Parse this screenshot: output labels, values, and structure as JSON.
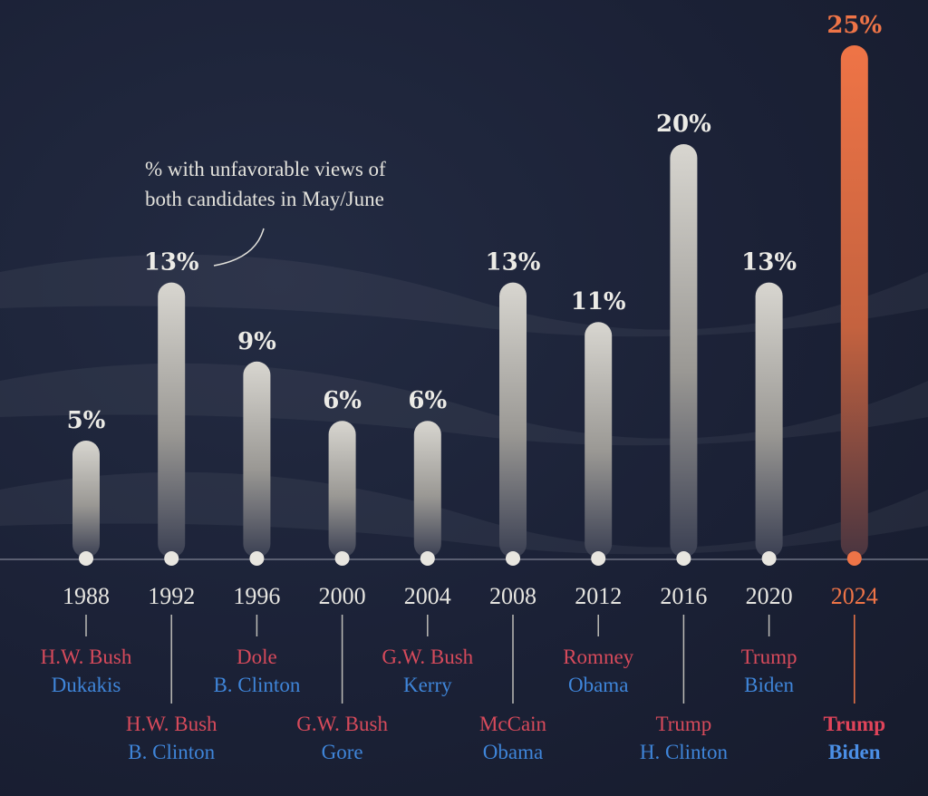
{
  "annotation": {
    "line1": "% with unfavorable views of",
    "line2": "both candidates in May/June"
  },
  "colors": {
    "bar": "#d6d4cf",
    "highlight": "#ee7447",
    "republican": "#d64a5b",
    "democrat": "#3f85d9"
  },
  "chart_data": {
    "type": "bar",
    "title": "",
    "xlabel": "",
    "ylabel": "",
    "ylim": [
      0,
      25
    ],
    "categories": [
      "1988",
      "1992",
      "1996",
      "2000",
      "2004",
      "2008",
      "2012",
      "2016",
      "2020",
      "2024"
    ],
    "values": [
      5,
      13,
      9,
      6,
      6,
      13,
      11,
      20,
      13,
      25
    ],
    "value_labels": [
      "5%",
      "13%",
      "9%",
      "6%",
      "6%",
      "13%",
      "11%",
      "20%",
      "13%",
      "25%"
    ],
    "republican_candidates": [
      "H.W. Bush",
      "H.W. Bush",
      "Dole",
      "G.W. Bush",
      "G.W. Bush",
      "McCain",
      "Romney",
      "Trump",
      "Trump",
      "Trump"
    ],
    "democratic_candidates": [
      "Dukakis",
      "B. Clinton",
      "B. Clinton",
      "Gore",
      "Kerry",
      "Obama",
      "Obama",
      "H. Clinton",
      "Biden",
      "Biden"
    ],
    "highlighted": "2024"
  }
}
